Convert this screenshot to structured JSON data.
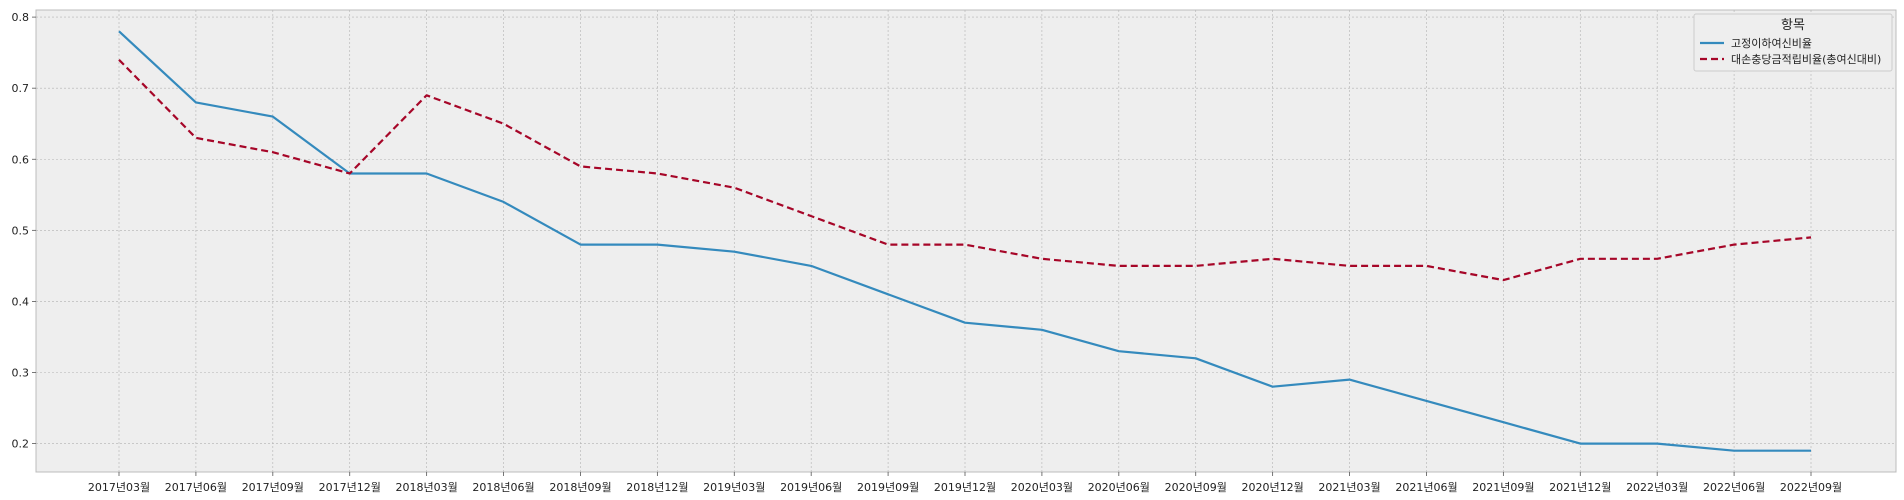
{
  "chart_data": {
    "type": "line",
    "categories": [
      "2017년03월",
      "2017년06월",
      "2017년09월",
      "2017년12월",
      "2018년03월",
      "2018년06월",
      "2018년09월",
      "2018년12월",
      "2019년03월",
      "2019년06월",
      "2019년09월",
      "2019년12월",
      "2020년03월",
      "2020년06월",
      "2020년09월",
      "2020년12월",
      "2021년03월",
      "2021년06월",
      "2021년09월",
      "2021년12월",
      "2022년03월",
      "2022년06월",
      "2022년09월"
    ],
    "series": [
      {
        "name": "고정이하여신비율",
        "color": "#348ABD",
        "dash": "solid",
        "values": [
          0.78,
          0.68,
          0.66,
          0.58,
          0.58,
          0.54,
          0.48,
          0.48,
          0.47,
          0.45,
          0.41,
          0.37,
          0.36,
          0.33,
          0.32,
          0.28,
          0.29,
          0.26,
          0.23,
          0.2,
          0.2,
          0.19,
          0.19
        ]
      },
      {
        "name": "대손충당금적립비율(총여신대비)",
        "color": "#A60628",
        "dash": "dashed",
        "values": [
          0.74,
          0.63,
          0.61,
          0.58,
          0.69,
          0.65,
          0.59,
          0.58,
          0.56,
          0.52,
          0.48,
          0.48,
          0.46,
          0.45,
          0.45,
          0.46,
          0.45,
          0.45,
          0.43,
          0.46,
          0.46,
          0.48,
          0.49
        ]
      }
    ],
    "title": "",
    "xlabel": "",
    "ylabel": "",
    "ylim": [
      0.16,
      0.81
    ],
    "yticks": [
      "0.2",
      "0.3",
      "0.4",
      "0.5",
      "0.6",
      "0.7",
      "0.8"
    ],
    "grid": true,
    "legend": {
      "title": "항목",
      "placement": "top-right"
    }
  }
}
